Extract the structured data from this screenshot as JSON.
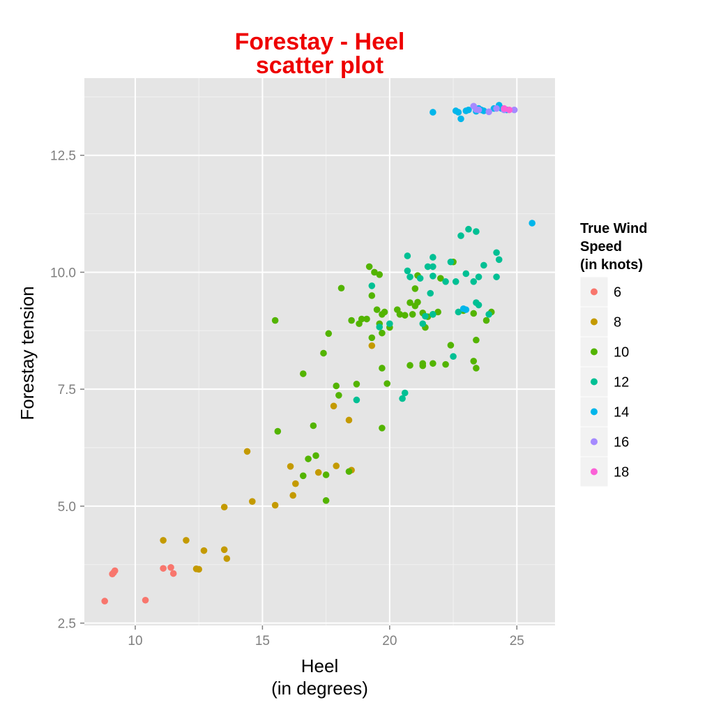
{
  "chart_data": {
    "type": "scatter",
    "title": [
      "Forestay - Heel",
      "scatter plot"
    ],
    "xlabel": [
      "Heel",
      "(in degrees)"
    ],
    "ylabel": "Forestay tension",
    "xlim": [
      8.0,
      26.5
    ],
    "ylim": [
      2.45,
      14.15
    ],
    "x_ticks": [
      10,
      15,
      20,
      25
    ],
    "x_tick_labels": [
      "10",
      "15",
      "20",
      "25"
    ],
    "y_ticks": [
      2.5,
      5.0,
      7.5,
      10.0,
      12.5
    ],
    "y_tick_labels": [
      "2.5",
      "5.0",
      "7.5",
      "10.0",
      "12.5"
    ],
    "grid": true,
    "legend": {
      "title": [
        "True Wind",
        " Speed",
        " (in knots)"
      ],
      "placement": "right"
    },
    "series": [
      {
        "name": "6",
        "color": "#f8766d",
        "points": [
          [
            8.8,
            2.97
          ],
          [
            9.1,
            3.55
          ],
          [
            9.2,
            3.62
          ],
          [
            9.15,
            3.58
          ],
          [
            10.4,
            2.99
          ],
          [
            11.1,
            3.67
          ],
          [
            11.4,
            3.69
          ],
          [
            11.5,
            3.56
          ]
        ]
      },
      {
        "name": "8",
        "color": "#c49a00",
        "points": [
          [
            11.1,
            4.27
          ],
          [
            12.0,
            4.27
          ],
          [
            12.4,
            3.66
          ],
          [
            12.5,
            3.65
          ],
          [
            12.7,
            4.05
          ],
          [
            13.5,
            4.07
          ],
          [
            13.6,
            3.88
          ],
          [
            13.5,
            4.98
          ],
          [
            14.4,
            6.17
          ],
          [
            14.6,
            5.1
          ],
          [
            15.5,
            5.02
          ],
          [
            16.1,
            5.85
          ],
          [
            16.3,
            5.48
          ],
          [
            16.2,
            5.23
          ],
          [
            17.2,
            5.72
          ],
          [
            17.8,
            7.14
          ],
          [
            17.9,
            5.86
          ],
          [
            18.4,
            6.84
          ],
          [
            18.5,
            5.77
          ],
          [
            19.3,
            8.43
          ]
        ]
      },
      {
        "name": "10",
        "color": "#53b400",
        "points": [
          [
            15.5,
            8.97
          ],
          [
            15.6,
            6.6
          ],
          [
            16.6,
            7.83
          ],
          [
            16.8,
            6.01
          ],
          [
            16.6,
            5.65
          ],
          [
            17.0,
            6.72
          ],
          [
            17.1,
            6.08
          ],
          [
            17.4,
            8.27
          ],
          [
            17.5,
            5.67
          ],
          [
            17.5,
            5.12
          ],
          [
            17.6,
            8.69
          ],
          [
            17.9,
            7.57
          ],
          [
            18.0,
            7.37
          ],
          [
            18.1,
            9.66
          ],
          [
            18.4,
            5.74
          ],
          [
            18.5,
            8.97
          ],
          [
            18.7,
            7.61
          ],
          [
            18.8,
            8.9
          ],
          [
            18.9,
            9.0
          ],
          [
            19.1,
            9.0
          ],
          [
            19.2,
            10.12
          ],
          [
            19.3,
            9.5
          ],
          [
            19.3,
            8.6
          ],
          [
            19.4,
            10.0
          ],
          [
            19.5,
            9.2
          ],
          [
            19.6,
            9.95
          ],
          [
            19.6,
            8.9
          ],
          [
            19.7,
            7.95
          ],
          [
            19.7,
            9.1
          ],
          [
            19.7,
            8.7
          ],
          [
            19.8,
            9.15
          ],
          [
            19.7,
            6.67
          ],
          [
            19.9,
            7.62
          ],
          [
            20.0,
            8.82
          ],
          [
            20.3,
            9.2
          ],
          [
            20.4,
            9.1
          ],
          [
            20.6,
            9.08
          ],
          [
            20.8,
            8.01
          ],
          [
            20.8,
            9.35
          ],
          [
            20.9,
            9.1
          ],
          [
            21.0,
            9.65
          ],
          [
            21.0,
            9.28
          ],
          [
            21.1,
            9.93
          ],
          [
            21.1,
            9.36
          ],
          [
            21.3,
            8.05
          ],
          [
            21.3,
            8.0
          ],
          [
            21.3,
            9.13
          ],
          [
            21.4,
            8.82
          ],
          [
            21.5,
            9.05
          ],
          [
            21.7,
            8.05
          ],
          [
            21.7,
            9.1
          ],
          [
            21.9,
            9.15
          ],
          [
            22.0,
            9.87
          ],
          [
            22.2,
            8.03
          ],
          [
            22.4,
            8.44
          ],
          [
            22.5,
            10.22
          ],
          [
            22.9,
            9.18
          ],
          [
            23.3,
            8.1
          ],
          [
            23.3,
            9.12
          ],
          [
            23.4,
            8.55
          ],
          [
            23.4,
            7.95
          ],
          [
            23.8,
            8.97
          ],
          [
            24.0,
            9.15
          ]
        ]
      },
      {
        "name": "12",
        "color": "#00c094",
        "points": [
          [
            18.7,
            7.27
          ],
          [
            19.3,
            9.71
          ],
          [
            19.6,
            8.83
          ],
          [
            20.0,
            8.9
          ],
          [
            20.5,
            7.3
          ],
          [
            20.6,
            7.42
          ],
          [
            20.7,
            10.35
          ],
          [
            20.7,
            10.03
          ],
          [
            20.8,
            9.9
          ],
          [
            21.2,
            9.87
          ],
          [
            21.3,
            8.9
          ],
          [
            21.4,
            9.06
          ],
          [
            21.5,
            10.12
          ],
          [
            21.6,
            9.55
          ],
          [
            21.7,
            10.32
          ],
          [
            21.7,
            10.12
          ],
          [
            21.7,
            9.92
          ],
          [
            21.7,
            9.1
          ],
          [
            22.2,
            9.8
          ],
          [
            22.4,
            10.22
          ],
          [
            22.5,
            8.2
          ],
          [
            22.6,
            9.8
          ],
          [
            22.7,
            9.15
          ],
          [
            22.8,
            10.78
          ],
          [
            23.0,
            9.97
          ],
          [
            23.1,
            10.92
          ],
          [
            23.3,
            9.8
          ],
          [
            23.4,
            10.87
          ],
          [
            23.4,
            9.35
          ],
          [
            23.5,
            9.3
          ],
          [
            23.5,
            9.9
          ],
          [
            23.7,
            10.15
          ],
          [
            23.9,
            9.1
          ],
          [
            24.2,
            9.9
          ],
          [
            24.2,
            10.42
          ],
          [
            24.3,
            10.27
          ]
        ]
      },
      {
        "name": "14",
        "color": "#00b6eb",
        "points": [
          [
            21.7,
            13.42
          ],
          [
            22.6,
            13.45
          ],
          [
            22.7,
            13.42
          ],
          [
            22.8,
            13.28
          ],
          [
            23.0,
            13.45
          ],
          [
            23.1,
            13.47
          ],
          [
            23.4,
            13.44
          ],
          [
            23.5,
            13.5
          ],
          [
            23.6,
            13.47
          ],
          [
            23.7,
            13.45
          ],
          [
            24.1,
            13.5
          ],
          [
            24.3,
            13.57
          ],
          [
            24.4,
            13.5
          ],
          [
            24.6,
            13.47
          ],
          [
            25.6,
            11.05
          ],
          [
            22.9,
            9.22
          ],
          [
            23.0,
            9.2
          ]
        ]
      },
      {
        "name": "16",
        "color": "#a58aff",
        "points": [
          [
            23.3,
            13.55
          ],
          [
            23.4,
            13.48
          ],
          [
            23.5,
            13.47
          ],
          [
            23.9,
            13.43
          ],
          [
            24.2,
            13.5
          ],
          [
            24.5,
            13.47
          ],
          [
            24.9,
            13.47
          ]
        ]
      },
      {
        "name": "18",
        "color": "#fb61d7",
        "points": [
          [
            24.5,
            13.5
          ],
          [
            24.7,
            13.47
          ]
        ]
      }
    ]
  }
}
